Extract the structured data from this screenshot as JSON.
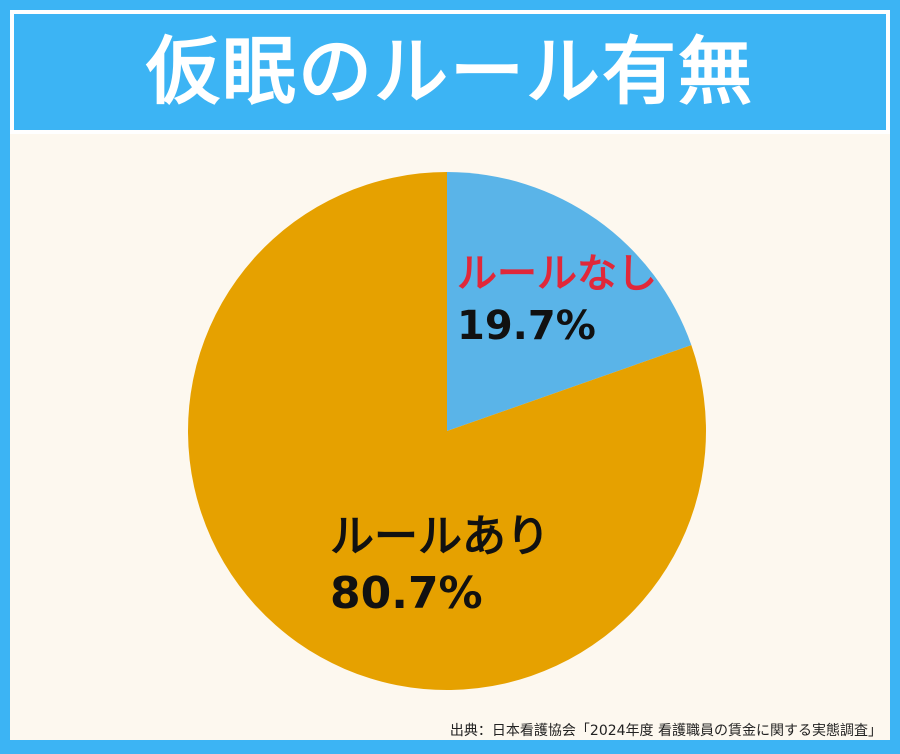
{
  "chart_data": {
    "type": "pie",
    "title": "仮眠のルール有無",
    "slices": [
      {
        "label": "ルールなし",
        "value": 19.7,
        "value_label": "19.7%",
        "color": "#5ab4e8",
        "label_color": "#e0283a"
      },
      {
        "label": "ルールあり",
        "value": 80.7,
        "value_label": "80.7%",
        "color": "#e6a100",
        "label_color": "#111111"
      }
    ],
    "start_angle": "top, clockwise",
    "legend": "none"
  },
  "source": "出典：日本看護協会「2024年度 看護職員の賃金に関する実態調査」",
  "colors": {
    "frame": "#3cb4f4",
    "background": "#fdf8ef",
    "title_text": "#ffffff"
  }
}
